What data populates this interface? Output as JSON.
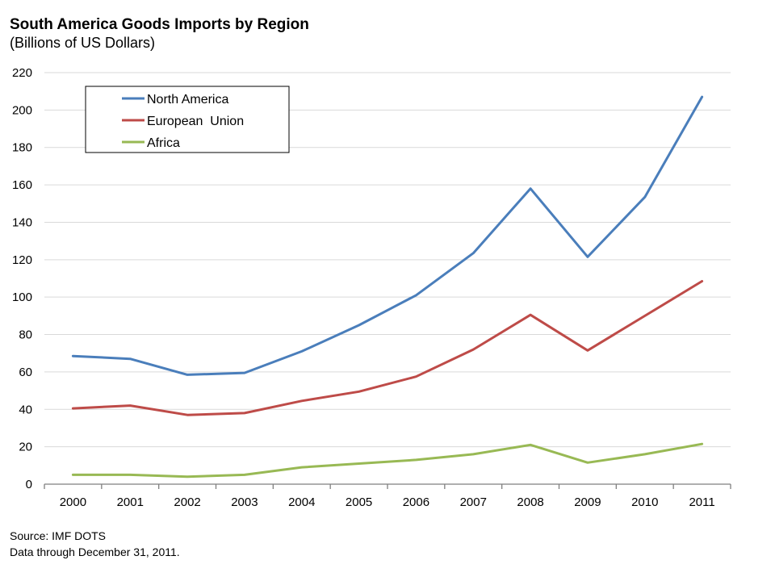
{
  "chart_data": {
    "type": "line",
    "title": "South America Goods Imports by Region",
    "subtitle": "(Billions of US Dollars)",
    "xlabel": "",
    "ylabel": "",
    "categories": [
      "2000",
      "2001",
      "2002",
      "2003",
      "2004",
      "2005",
      "2006",
      "2007",
      "2008",
      "2009",
      "2010",
      "2011"
    ],
    "ylim": [
      0,
      220
    ],
    "yticks": [
      0,
      20,
      40,
      60,
      80,
      100,
      120,
      140,
      160,
      180,
      200,
      220
    ],
    "grid": true,
    "legend_position": "top-left",
    "series": [
      {
        "name": "North America",
        "color": "#4a7ebb",
        "values": [
          68.5,
          67,
          58.5,
          59.5,
          71,
          85,
          101,
          123.5,
          158,
          121.5,
          153.5,
          207
        ]
      },
      {
        "name": "European  Union",
        "color": "#be4b48",
        "values": [
          40.5,
          42,
          37,
          38,
          44.5,
          49.5,
          57.5,
          72,
          90.5,
          71.5,
          90,
          108.5
        ]
      },
      {
        "name": "Africa",
        "color": "#98b954",
        "values": [
          5,
          5,
          4,
          5,
          9,
          11,
          13,
          16,
          21,
          11.5,
          16,
          21.5
        ]
      }
    ]
  },
  "footer": {
    "source": "Source: IMF DOTS",
    "data_through": "Data through December 31, 2011."
  }
}
